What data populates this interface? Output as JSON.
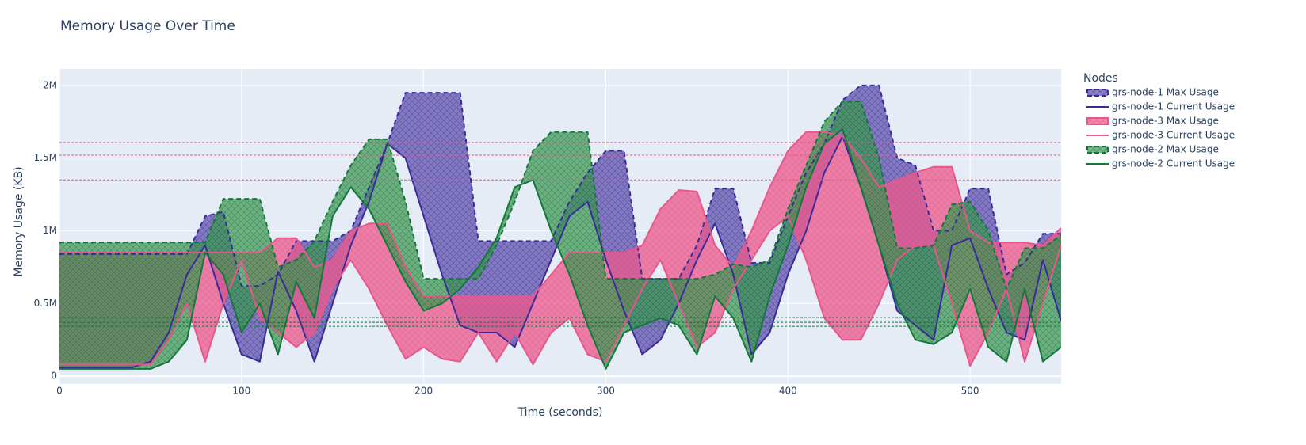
{
  "chart_data": {
    "type": "area-band",
    "title": "Memory Usage Over Time",
    "x_label": "Time (seconds)",
    "y_label": "Memory Usage (KB)",
    "legend_title": "Nodes",
    "legend_position": "right",
    "grid": true,
    "xlim": [
      0,
      550
    ],
    "xticks": [
      0,
      100,
      200,
      300,
      400,
      500
    ],
    "ylim": [
      -54000,
      2114000
    ],
    "yticks": [
      0,
      {
        "value": 500000,
        "label": "0.5M"
      },
      {
        "value": 1000000,
        "label": "1M"
      },
      {
        "value": 1500000,
        "label": "1.5M"
      },
      {
        "value": 2000000,
        "label": "2M"
      }
    ],
    "x": [
      0,
      10,
      20,
      30,
      40,
      50,
      60,
      70,
      80,
      90,
      100,
      110,
      120,
      130,
      140,
      150,
      160,
      170,
      180,
      190,
      200,
      210,
      220,
      230,
      240,
      250,
      260,
      270,
      280,
      290,
      300,
      310,
      320,
      330,
      340,
      350,
      360,
      370,
      380,
      390,
      400,
      410,
      420,
      430,
      440,
      450,
      460,
      470,
      480,
      490,
      500,
      510,
      520,
      530,
      540,
      550
    ],
    "series": [
      {
        "name": "grs-node-1 Max Usage",
        "color": "#3a2a9a",
        "fill_color": "rgba(88,72,168,0.7)",
        "dash": "dash",
        "pattern": "crosshatch",
        "values": [
          840000,
          840000,
          840000,
          840000,
          840000,
          840000,
          840000,
          840000,
          1100000,
          1130000,
          620000,
          620000,
          700000,
          930000,
          930000,
          930000,
          1000000,
          1300000,
          1600000,
          1950000,
          1950000,
          1950000,
          1950000,
          930000,
          930000,
          930000,
          930000,
          930000,
          1200000,
          1400000,
          1550000,
          1550000,
          670000,
          670000,
          670000,
          900000,
          1290000,
          1290000,
          780000,
          780000,
          1100000,
          1400000,
          1600000,
          1900000,
          2000000,
          2000000,
          1500000,
          1450000,
          1000000,
          1000000,
          1290000,
          1290000,
          700000,
          780000,
          980000,
          980000
        ]
      },
      {
        "name": "grs-node-1 Current Usage",
        "color": "#3a2a9a",
        "fill": "tonexty",
        "values": [
          60000,
          60000,
          60000,
          60000,
          60000,
          100000,
          300000,
          700000,
          900000,
          500000,
          150000,
          100000,
          720000,
          450000,
          100000,
          500000,
          900000,
          1200000,
          1600000,
          1500000,
          1100000,
          700000,
          350000,
          300000,
          300000,
          200000,
          500000,
          800000,
          1100000,
          1200000,
          800000,
          450000,
          150000,
          250000,
          500000,
          800000,
          1050000,
          700000,
          150000,
          300000,
          700000,
          1000000,
          1400000,
          1650000,
          1300000,
          900000,
          450000,
          350000,
          250000,
          900000,
          950000,
          600000,
          300000,
          250000,
          800000,
          380000
        ]
      },
      {
        "name": "grs-node-3 Max Usage",
        "color": "#e8578b",
        "fill_color": "rgba(236,90,140,0.75)",
        "pattern": "crosshatch",
        "values": [
          850000,
          850000,
          850000,
          850000,
          850000,
          850000,
          850000,
          850000,
          850000,
          850000,
          850000,
          850000,
          950000,
          950000,
          750000,
          800000,
          1000000,
          1050000,
          1050000,
          750000,
          550000,
          550000,
          550000,
          550000,
          550000,
          550000,
          550000,
          700000,
          850000,
          850000,
          850000,
          850000,
          900000,
          1150000,
          1280000,
          1270000,
          900000,
          750000,
          1000000,
          1300000,
          1550000,
          1680000,
          1680000,
          1650000,
          1500000,
          1300000,
          1350000,
          1400000,
          1440000,
          1440000,
          1000000,
          920000,
          920000,
          920000,
          900000,
          1020000
        ]
      },
      {
        "name": "grs-node-3 Current Usage",
        "color": "#e8578b",
        "fill": "tonexty",
        "values": [
          80000,
          80000,
          80000,
          80000,
          80000,
          80000,
          250000,
          500000,
          100000,
          500000,
          800000,
          400000,
          300000,
          200000,
          300000,
          600000,
          800000,
          600000,
          350000,
          120000,
          200000,
          120000,
          100000,
          300000,
          100000,
          300000,
          80000,
          300000,
          400000,
          150000,
          100000,
          350000,
          600000,
          800000,
          500000,
          200000,
          300000,
          600000,
          800000,
          1000000,
          1100000,
          800000,
          400000,
          250000,
          250000,
          500000,
          800000,
          900000,
          900000,
          500000,
          70000,
          300000,
          600000,
          100000,
          500000,
          900000
        ]
      },
      {
        "name": "grs-node-2 Max Usage",
        "color": "#12783a",
        "fill_color": "rgba(60,150,80,0.7)",
        "dash": "dash",
        "pattern": "crosshatch",
        "values": [
          920000,
          920000,
          920000,
          920000,
          920000,
          920000,
          920000,
          920000,
          920000,
          1220000,
          1220000,
          1220000,
          750000,
          800000,
          930000,
          1200000,
          1450000,
          1630000,
          1630000,
          1200000,
          670000,
          670000,
          670000,
          670000,
          900000,
          1200000,
          1550000,
          1680000,
          1680000,
          1680000,
          670000,
          670000,
          670000,
          670000,
          670000,
          670000,
          700000,
          770000,
          750000,
          800000,
          1150000,
          1450000,
          1750000,
          1890000,
          1890000,
          1500000,
          880000,
          880000,
          900000,
          1180000,
          1200000,
          1000000,
          600000,
          880000,
          880000,
          970000
        ]
      },
      {
        "name": "grs-node-2 Current Usage",
        "color": "#12783a",
        "fill": "tonexty",
        "values": [
          50000,
          50000,
          50000,
          50000,
          50000,
          50000,
          100000,
          250000,
          850000,
          700000,
          300000,
          500000,
          150000,
          650000,
          400000,
          1100000,
          1300000,
          1150000,
          900000,
          650000,
          450000,
          500000,
          600000,
          750000,
          950000,
          1300000,
          1350000,
          1000000,
          700000,
          350000,
          50000,
          300000,
          350000,
          400000,
          350000,
          150000,
          550000,
          400000,
          100000,
          550000,
          900000,
          1300000,
          1600000,
          1700000,
          1300000,
          900000,
          500000,
          250000,
          220000,
          300000,
          600000,
          200000,
          100000,
          600000,
          100000,
          200000
        ]
      }
    ],
    "hlines": [
      {
        "value": 1608000,
        "color": "#e8578b"
      },
      {
        "value": 1520000,
        "color": "#e8578b"
      },
      {
        "value": 1350000,
        "color": "#e8578b"
      },
      {
        "value": 403000,
        "color": "#12783a"
      },
      {
        "value": 370000,
        "color": "#12783a"
      },
      {
        "value": 343000,
        "color": "#12783a"
      }
    ]
  }
}
